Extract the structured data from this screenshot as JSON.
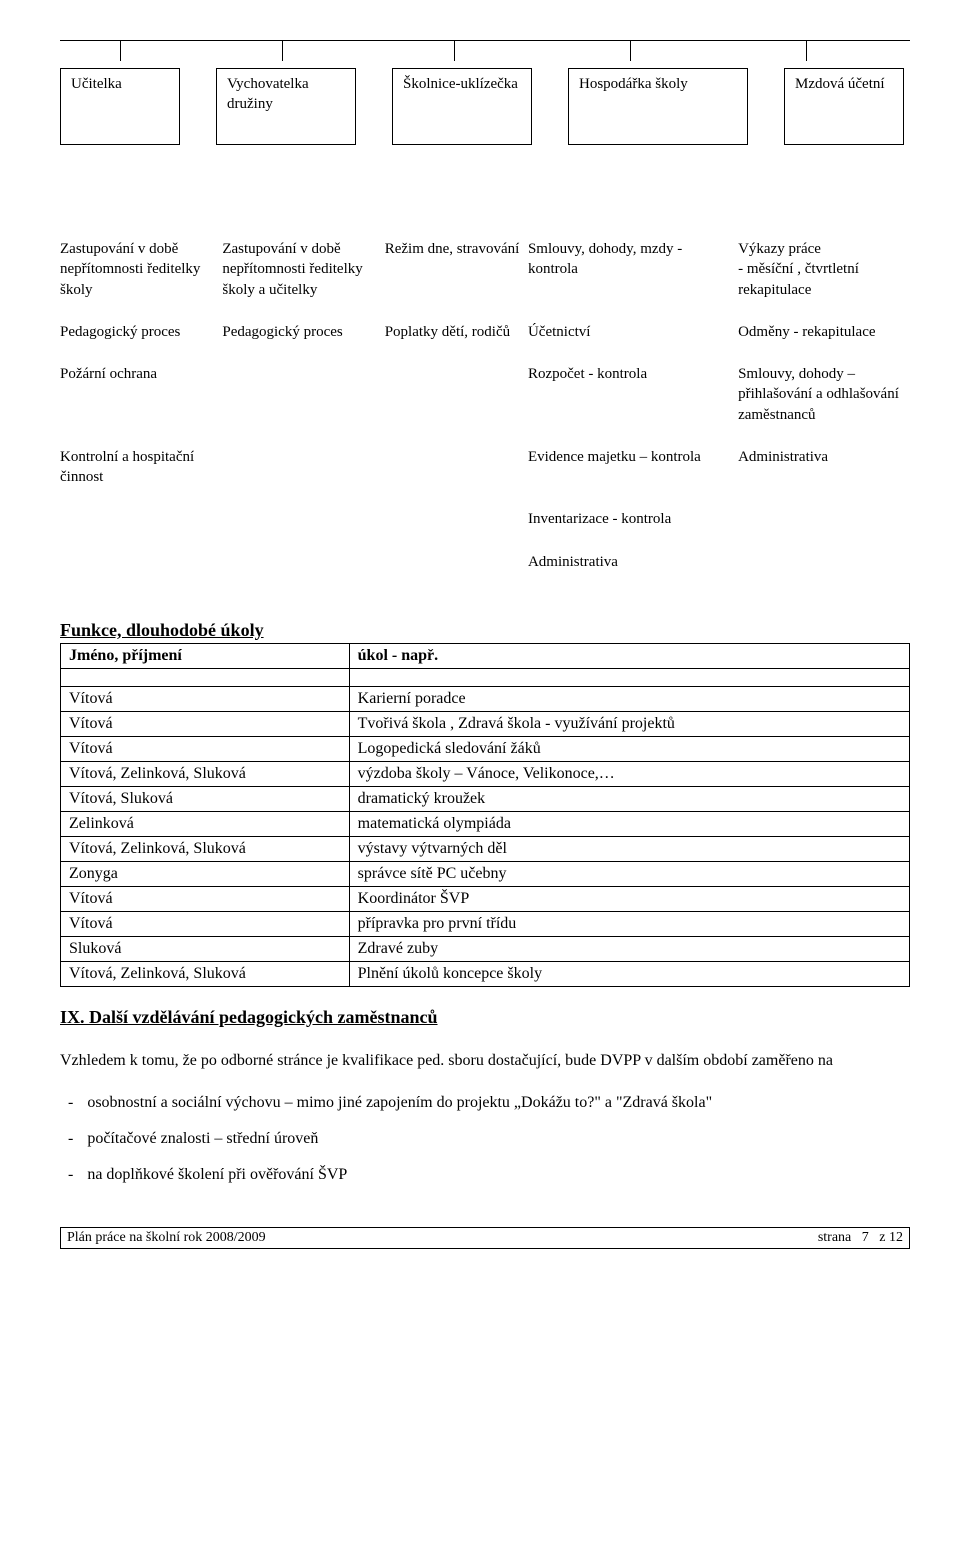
{
  "boxes": [
    "Učitelka",
    "Vychovatelka družiny",
    "Školnice-uklízečka",
    "Hospodářka školy",
    "Mzdová účetní"
  ],
  "tickPositions": [
    60,
    222,
    394,
    570,
    746
  ],
  "grid": {
    "rows": [
      [
        "Zastupování v době nepřítomnosti ředitelky školy",
        "Zastupování v době nepřítomnosti ředitelky školy a učitelky",
        "Režim dne, stravování",
        "Smlouvy, dohody, mzdy - kontrola",
        "Výkazy práce\n- měsíční , čtvrtletní rekapitulace"
      ],
      [
        "Pedagogický proces",
        "Pedagogický proces",
        "Poplatky dětí, rodičů",
        "Účetnictví",
        "Odměny - rekapitulace"
      ],
      [
        "Požární ochrana",
        "",
        "",
        "Rozpočet - kontrola",
        "Smlouvy, dohody – přihlašování a odhlašování zaměstnanců"
      ],
      [
        "Kontrolní a hospitační činnost",
        "",
        "",
        "Evidence majetku – kontrola",
        "Administrativa"
      ],
      [
        "",
        "",
        "",
        "Inventarizace - kontrola",
        ""
      ],
      [
        "",
        "",
        "",
        "Administrativa",
        ""
      ]
    ]
  },
  "tasksTitle": "Funkce, dlouhodobé úkoly",
  "tasksHeader": [
    "Jméno, příjmení",
    "úkol - např."
  ],
  "tasksRows": [
    [
      "Vítová",
      "Karierní poradce"
    ],
    [
      "Vítová",
      "Tvořivá škola , Zdravá škola - využívání projektů"
    ],
    [
      "Vítová",
      "Logopedická sledování žáků"
    ],
    [
      "Vítová, Zelinková, Sluková",
      "výzdoba školy – Vánoce, Velikonoce,…"
    ],
    [
      "Vítová, Sluková",
      "dramatický kroužek"
    ],
    [
      "Zelinková",
      "matematická olympiáda"
    ],
    [
      "Vítová, Zelinková, Sluková",
      "výstavy výtvarných děl"
    ],
    [
      "Zonyga",
      "správce sítě PC učebny"
    ],
    [
      "Vítová",
      "Koordinátor ŠVP"
    ],
    [
      "Vítová",
      "přípravka pro první třídu"
    ],
    [
      "Sluková",
      "Zdravé zuby"
    ],
    [
      "Vítová, Zelinková, Sluková",
      "Plnění úkolů koncepce školy"
    ]
  ],
  "section2Title": "IX. Další vzdělávání pedagogických zaměstnanců",
  "para": "Vzhledem k tomu, že po odborné stránce je kvalifikace ped. sboru dostačující,  bude DVPP v dalším období zaměřeno na",
  "bullets": [
    "osobnostní a sociální výchovu – mimo jiné zapojením do projektu „Dokážu to?\"  a \"Zdravá škola\"",
    "počítačové znalosti – střední úroveň",
    "na doplňkové školení při ověřování ŠVP"
  ],
  "footer": {
    "left": "Plán práce na školní rok 2008/2009",
    "rightPrefix": "strana   ",
    "pageNum": "7",
    "rightSuffix": "   z 12"
  }
}
